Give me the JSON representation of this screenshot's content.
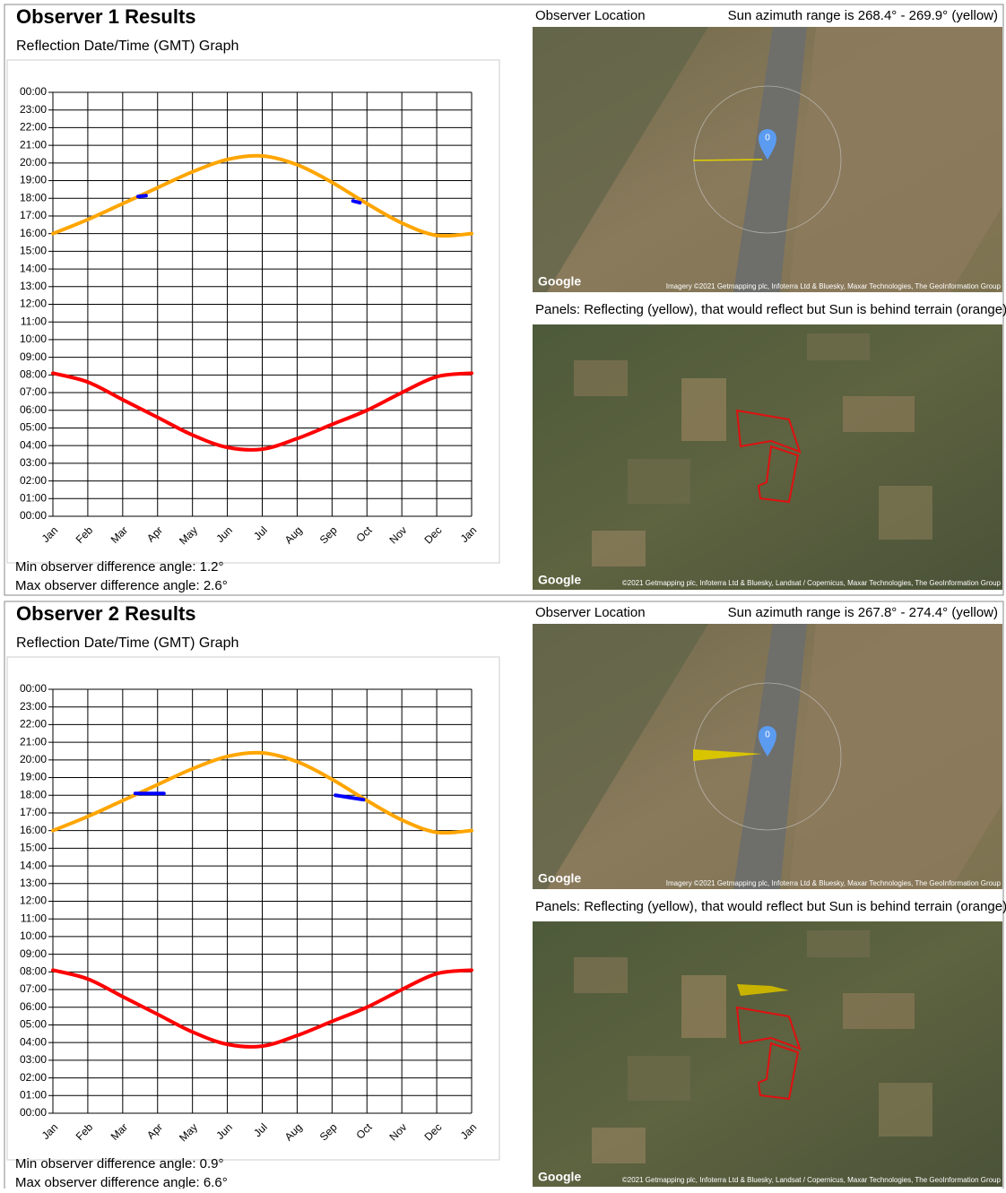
{
  "observers": [
    {
      "title": "Observer 1 Results",
      "location_label": "Observer Location",
      "azimuth": "Sun azimuth range is 268.4° - 269.9° (yellow)",
      "panels_label": "Panels: Reflecting (yellow), that would reflect but Sun is behind terrain (orange)",
      "min_angle": "Min observer difference angle: 1.2°",
      "max_angle": "Max observer difference angle: 2.6°",
      "map1": {
        "logo": "Google",
        "pin": "0",
        "credit": "Imagery ©2021 Getmapping plc, Infoterra Ltd & Bluesky, Maxar Technologies, The GeoInformation Group"
      },
      "map2": {
        "logo": "Google",
        "credit": "©2021 Getmapping plc, Infoterra Ltd & Bluesky, Landsat / Copernicus, Maxar Technologies, The GeoInformation Group"
      }
    },
    {
      "title": "Observer 2 Results",
      "location_label": "Observer Location",
      "azimuth": "Sun azimuth range is 267.8° - 274.4° (yellow)",
      "panels_label": "Panels: Reflecting (yellow), that would reflect but Sun is behind terrain (orange)",
      "min_angle": "Min observer difference angle: 0.9°",
      "max_angle": "Max observer difference angle: 6.6°",
      "map1": {
        "logo": "Google",
        "pin": "0",
        "credit": "Imagery ©2021 Getmapping plc, Infoterra Ltd & Bluesky, Maxar Technologies, The GeoInformation Group"
      },
      "map2": {
        "logo": "Google",
        "credit": "©2021 Getmapping plc, Infoterra Ltd & Bluesky, Landsat / Copernicus, Maxar Technologies, The GeoInformation Group"
      }
    }
  ],
  "chart_data": [
    {
      "type": "line",
      "title": "Reflection Date/Time (GMT) Graph",
      "grid": true,
      "xlim": [
        0,
        12
      ],
      "xticks": [
        {
          "value": 0,
          "label": "Jan"
        },
        {
          "value": 1,
          "label": "Feb"
        },
        {
          "value": 2,
          "label": "Mar"
        },
        {
          "value": 3,
          "label": "Apr"
        },
        {
          "value": 4,
          "label": "May"
        },
        {
          "value": 5,
          "label": "Jun"
        },
        {
          "value": 6,
          "label": "Jul"
        },
        {
          "value": 7,
          "label": "Aug"
        },
        {
          "value": 8,
          "label": "Sep"
        },
        {
          "value": 9,
          "label": "Oct"
        },
        {
          "value": 10,
          "label": "Nov"
        },
        {
          "value": 11,
          "label": "Dec"
        },
        {
          "value": 12,
          "label": "Jan"
        }
      ],
      "ylim": [
        0,
        24
      ],
      "yticks": [
        {
          "value": 0,
          "label": "00:00"
        },
        {
          "value": 1,
          "label": "01:00"
        },
        {
          "value": 2,
          "label": "02:00"
        },
        {
          "value": 3,
          "label": "03:00"
        },
        {
          "value": 4,
          "label": "04:00"
        },
        {
          "value": 5,
          "label": "05:00"
        },
        {
          "value": 6,
          "label": "06:00"
        },
        {
          "value": 7,
          "label": "07:00"
        },
        {
          "value": 8,
          "label": "08:00"
        },
        {
          "value": 9,
          "label": "09:00"
        },
        {
          "value": 10,
          "label": "10:00"
        },
        {
          "value": 11,
          "label": "11:00"
        },
        {
          "value": 12,
          "label": "12:00"
        },
        {
          "value": 13,
          "label": "13:00"
        },
        {
          "value": 14,
          "label": "14:00"
        },
        {
          "value": 15,
          "label": "15:00"
        },
        {
          "value": 16,
          "label": "16:00"
        },
        {
          "value": 17,
          "label": "17:00"
        },
        {
          "value": 18,
          "label": "18:00"
        },
        {
          "value": 19,
          "label": "19:00"
        },
        {
          "value": 20,
          "label": "20:00"
        },
        {
          "value": 21,
          "label": "21:00"
        },
        {
          "value": 22,
          "label": "22:00"
        },
        {
          "value": 23,
          "label": "23:00"
        },
        {
          "value": 24,
          "label": "00:00"
        }
      ],
      "series": [
        {
          "color": "#ffa500",
          "x": [
            0,
            1,
            2,
            3,
            4,
            5,
            6,
            7,
            8,
            9,
            10,
            11,
            12
          ],
          "values": [
            16.0,
            16.8,
            17.7,
            18.6,
            19.5,
            20.2,
            20.4,
            19.9,
            18.9,
            17.7,
            16.6,
            15.9,
            16.0
          ]
        },
        {
          "color": "#ff0000",
          "x": [
            0,
            1,
            2,
            3,
            4,
            5,
            6,
            7,
            8,
            9,
            10,
            11,
            12
          ],
          "values": [
            8.1,
            7.6,
            6.6,
            5.6,
            4.6,
            3.9,
            3.8,
            4.4,
            5.2,
            6.0,
            7.0,
            7.9,
            8.1
          ]
        },
        {
          "color": "#0000ff",
          "x": [
            2.44,
            2.67
          ],
          "values": [
            18.1,
            18.15
          ]
        },
        {
          "color": "#0000ff",
          "x": [
            8.6,
            8.8
          ],
          "values": [
            17.85,
            17.75
          ]
        }
      ]
    },
    {
      "type": "line",
      "title": "Reflection Date/Time (GMT) Graph",
      "grid": true,
      "xlim": [
        0,
        12
      ],
      "xticks": [
        {
          "value": 0,
          "label": "Jan"
        },
        {
          "value": 1,
          "label": "Feb"
        },
        {
          "value": 2,
          "label": "Mar"
        },
        {
          "value": 3,
          "label": "Apr"
        },
        {
          "value": 4,
          "label": "May"
        },
        {
          "value": 5,
          "label": "Jun"
        },
        {
          "value": 6,
          "label": "Jul"
        },
        {
          "value": 7,
          "label": "Aug"
        },
        {
          "value": 8,
          "label": "Sep"
        },
        {
          "value": 9,
          "label": "Oct"
        },
        {
          "value": 10,
          "label": "Nov"
        },
        {
          "value": 11,
          "label": "Dec"
        },
        {
          "value": 12,
          "label": "Jan"
        }
      ],
      "ylim": [
        0,
        24
      ],
      "yticks": [
        {
          "value": 0,
          "label": "00:00"
        },
        {
          "value": 1,
          "label": "01:00"
        },
        {
          "value": 2,
          "label": "02:00"
        },
        {
          "value": 3,
          "label": "03:00"
        },
        {
          "value": 4,
          "label": "04:00"
        },
        {
          "value": 5,
          "label": "05:00"
        },
        {
          "value": 6,
          "label": "06:00"
        },
        {
          "value": 7,
          "label": "07:00"
        },
        {
          "value": 8,
          "label": "08:00"
        },
        {
          "value": 9,
          "label": "09:00"
        },
        {
          "value": 10,
          "label": "10:00"
        },
        {
          "value": 11,
          "label": "11:00"
        },
        {
          "value": 12,
          "label": "12:00"
        },
        {
          "value": 13,
          "label": "13:00"
        },
        {
          "value": 14,
          "label": "14:00"
        },
        {
          "value": 15,
          "label": "15:00"
        },
        {
          "value": 16,
          "label": "16:00"
        },
        {
          "value": 17,
          "label": "17:00"
        },
        {
          "value": 18,
          "label": "18:00"
        },
        {
          "value": 19,
          "label": "19:00"
        },
        {
          "value": 20,
          "label": "20:00"
        },
        {
          "value": 21,
          "label": "21:00"
        },
        {
          "value": 22,
          "label": "22:00"
        },
        {
          "value": 23,
          "label": "23:00"
        },
        {
          "value": 24,
          "label": "00:00"
        }
      ],
      "series": [
        {
          "color": "#ffa500",
          "x": [
            0,
            1,
            2,
            3,
            4,
            5,
            6,
            7,
            8,
            9,
            10,
            11,
            12
          ],
          "values": [
            16.0,
            16.8,
            17.7,
            18.6,
            19.5,
            20.2,
            20.4,
            19.9,
            18.9,
            17.7,
            16.6,
            15.9,
            16.0
          ]
        },
        {
          "color": "#ff0000",
          "x": [
            0,
            1,
            2,
            3,
            4,
            5,
            6,
            7,
            8,
            9,
            10,
            11,
            12
          ],
          "values": [
            8.1,
            7.6,
            6.6,
            5.6,
            4.6,
            3.9,
            3.8,
            4.4,
            5.2,
            6.0,
            7.0,
            7.9,
            8.1
          ]
        },
        {
          "color": "#0000ff",
          "x": [
            2.36,
            3.18
          ],
          "values": [
            18.1,
            18.1
          ]
        },
        {
          "color": "#0000ff",
          "x": [
            8.1,
            8.9
          ],
          "values": [
            18.0,
            17.75
          ]
        }
      ]
    }
  ]
}
